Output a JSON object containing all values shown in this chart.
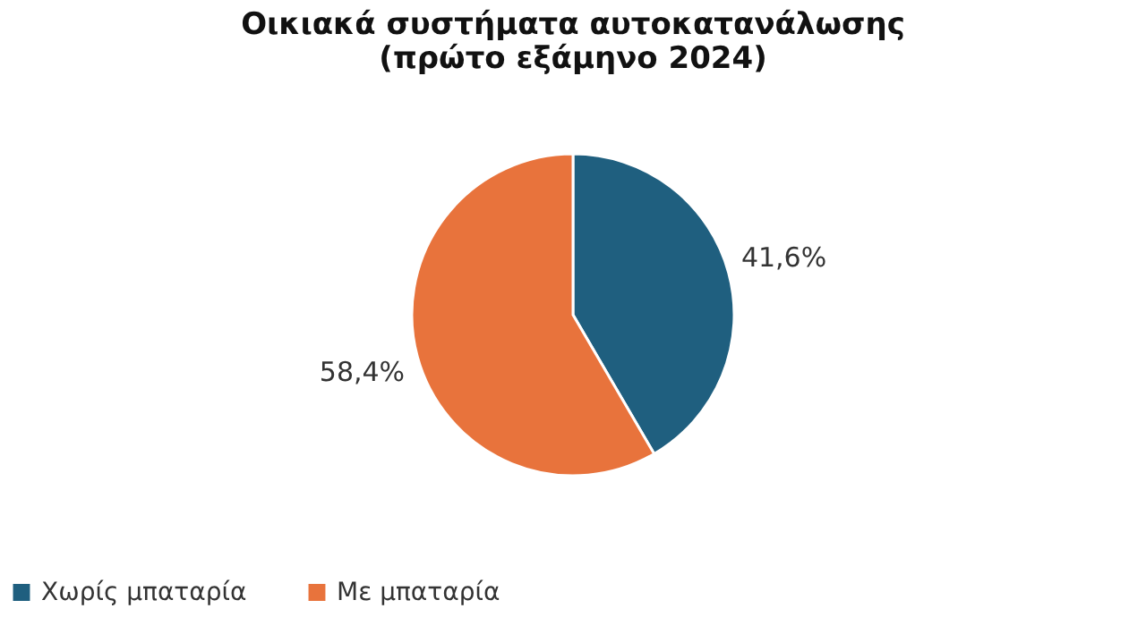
{
  "chart_data": {
    "type": "pie",
    "title": [
      "Οικιακά συστήματα αυτοκατανάλωσης",
      "(πρώτο εξάμηνο 2024)"
    ],
    "categories": [
      "Χωρίς μπαταρία",
      "Με μπαταρία"
    ],
    "values": [
      41.6,
      58.4
    ],
    "colors": [
      "#1f5f7f",
      "#e8733c"
    ],
    "value_labels": [
      "41,6%",
      "58,4%"
    ],
    "legend": "bottom"
  }
}
